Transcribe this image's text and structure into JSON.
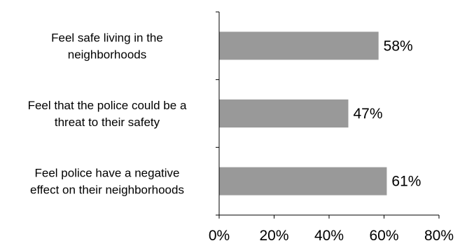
{
  "chart_data": {
    "type": "bar",
    "orientation": "horizontal",
    "categories": [
      [
        "Feel safe living in the",
        "neighborhoods"
      ],
      [
        "Feel that the police could be a",
        "threat to their safety"
      ],
      [
        "Feel police have a negative",
        "effect on their neighborhoods"
      ]
    ],
    "values": [
      58,
      47,
      61
    ],
    "data_labels": [
      "58%",
      "47%",
      "61%"
    ],
    "xlim": [
      0,
      80
    ],
    "ticks": [
      0,
      20,
      40,
      60,
      80
    ],
    "tick_labels": [
      "0%",
      "20%",
      "40%",
      "60%",
      "80%"
    ],
    "bar_color": "#999999",
    "grid": false,
    "legend": "none"
  }
}
